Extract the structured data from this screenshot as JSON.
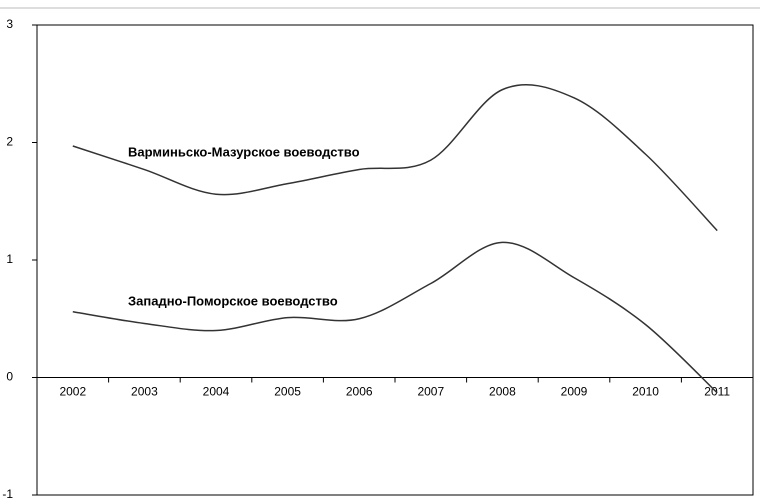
{
  "chart_data": {
    "type": "line",
    "categories": [
      "2002",
      "2003",
      "2004",
      "2005",
      "2006",
      "2007",
      "2008",
      "2009",
      "2010",
      "2011"
    ],
    "series": [
      {
        "name": "Варминьско-Мазурское воеводство",
        "color": "#333333",
        "values": [
          1.97,
          1.77,
          1.56,
          1.65,
          1.77,
          1.85,
          2.45,
          2.38,
          1.9,
          1.25
        ]
      },
      {
        "name": "Западно-Поморское воеводство",
        "color": "#333333",
        "values": [
          0.56,
          0.46,
          0.4,
          0.51,
          0.5,
          0.8,
          1.15,
          0.85,
          0.45,
          -0.13
        ]
      }
    ],
    "ylim": [
      -1,
      3
    ],
    "yticks": [
      -1,
      0,
      1,
      2,
      3
    ],
    "grid": false
  }
}
